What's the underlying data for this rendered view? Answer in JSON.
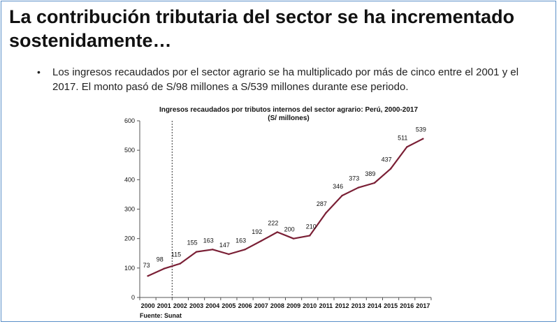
{
  "slide": {
    "title": "La contribución tributaria del sector se ha incrementado sostenidamente…",
    "bullet_symbol": "•",
    "bullet_text": "Los ingresos recaudados por el sector agrario se ha multiplicado por más de cinco entre el 2001 y el 2017. El monto pasó de S/98 millones a S/539 millones durante ese periodo.",
    "source": "Fuente: Sunat"
  },
  "colors": {
    "line": "#7a1f35",
    "axis": "#555555",
    "text": "#111111",
    "border": "#5a8fc8"
  },
  "chart_data": {
    "type": "line",
    "title": "Ingresos recaudados por tributos internos del sector agrario: Perú, 2000-2017",
    "subtitle": "(S/ millones)",
    "xlabel": "",
    "ylabel": "",
    "x": [
      "2000",
      "2001",
      "2002",
      "2003",
      "2004",
      "2005",
      "2006",
      "2007",
      "2008",
      "2009",
      "2010",
      "2011",
      "2012",
      "2013",
      "2014",
      "2015",
      "2016",
      "2017"
    ],
    "series": [
      {
        "values": [
          73,
          98,
          115,
          155,
          163,
          147,
          163,
          192,
          222,
          200,
          210,
          287,
          346,
          373,
          389,
          437,
          511,
          539
        ]
      }
    ],
    "ylim": [
      0,
      600
    ],
    "yticks": [
      0,
      100,
      200,
      300,
      400,
      500,
      600
    ],
    "grid": false,
    "reference_line": {
      "x": "2001.5",
      "style": "dashed"
    }
  }
}
